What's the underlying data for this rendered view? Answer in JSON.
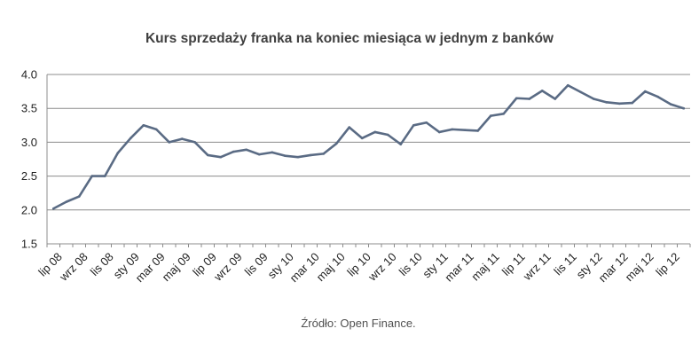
{
  "chart_data": {
    "type": "line",
    "title": "Kurs sprzedaży franka na koniec miesiąca w jednym z banków",
    "xlabel": "",
    "ylabel": "",
    "ylim": [
      1.5,
      4.0
    ],
    "yticks": [
      "4.0",
      "3.5",
      "3.0",
      "2.5",
      "2.0",
      "1.5"
    ],
    "grid": true,
    "legend": "none",
    "line_color": "#5a6b84",
    "x_tick_labels": [
      "lip 08",
      "wrz 08",
      "lis 08",
      "sty 09",
      "mar 09",
      "maj 09",
      "lip 09",
      "wrz 09",
      "lis 09",
      "sty 10",
      "mar 10",
      "maj 10",
      "lip 10",
      "wrz 10",
      "lis 10",
      "sty 11",
      "mar 11",
      "maj 11",
      "lip 11",
      "wrz 11",
      "lis 11",
      "sty 12",
      "mar 12",
      "maj 12",
      "lip 12"
    ],
    "x": [
      "lip 08",
      "sie 08",
      "wrz 08",
      "paź 08",
      "lis 08",
      "gru 08",
      "sty 09",
      "lut 09",
      "mar 09",
      "kwi 09",
      "maj 09",
      "cze 09",
      "lip 09",
      "sie 09",
      "wrz 09",
      "paź 09",
      "lis 09",
      "gru 09",
      "sty 10",
      "lut 10",
      "mar 10",
      "kwi 10",
      "maj 10",
      "cze 10",
      "lip 10",
      "sie 10",
      "wrz 10",
      "paź 10",
      "lis 10",
      "gru 10",
      "sty 11",
      "lut 11",
      "mar 11",
      "kwi 11",
      "maj 11",
      "cze 11",
      "lip 11",
      "sie 11",
      "wrz 11",
      "paź 11",
      "lis 11",
      "gru 11",
      "sty 12",
      "lut 12",
      "mar 12",
      "kwi 12",
      "maj 12",
      "cze 12",
      "lip 12",
      "sie 12"
    ],
    "values": [
      2.02,
      2.12,
      2.2,
      2.5,
      2.5,
      2.84,
      3.06,
      3.25,
      3.19,
      3.0,
      3.05,
      3.0,
      2.81,
      2.78,
      2.86,
      2.89,
      2.82,
      2.85,
      2.8,
      2.78,
      2.81,
      2.83,
      2.98,
      3.22,
      3.06,
      3.15,
      3.11,
      2.97,
      3.25,
      3.29,
      3.15,
      3.19,
      3.18,
      3.17,
      3.39,
      3.42,
      3.65,
      3.64,
      3.76,
      3.64,
      3.84,
      3.74,
      3.64,
      3.59,
      3.57,
      3.58,
      3.75,
      3.67,
      3.56,
      3.5
    ]
  },
  "source_note": "Źródło: Open Finance."
}
